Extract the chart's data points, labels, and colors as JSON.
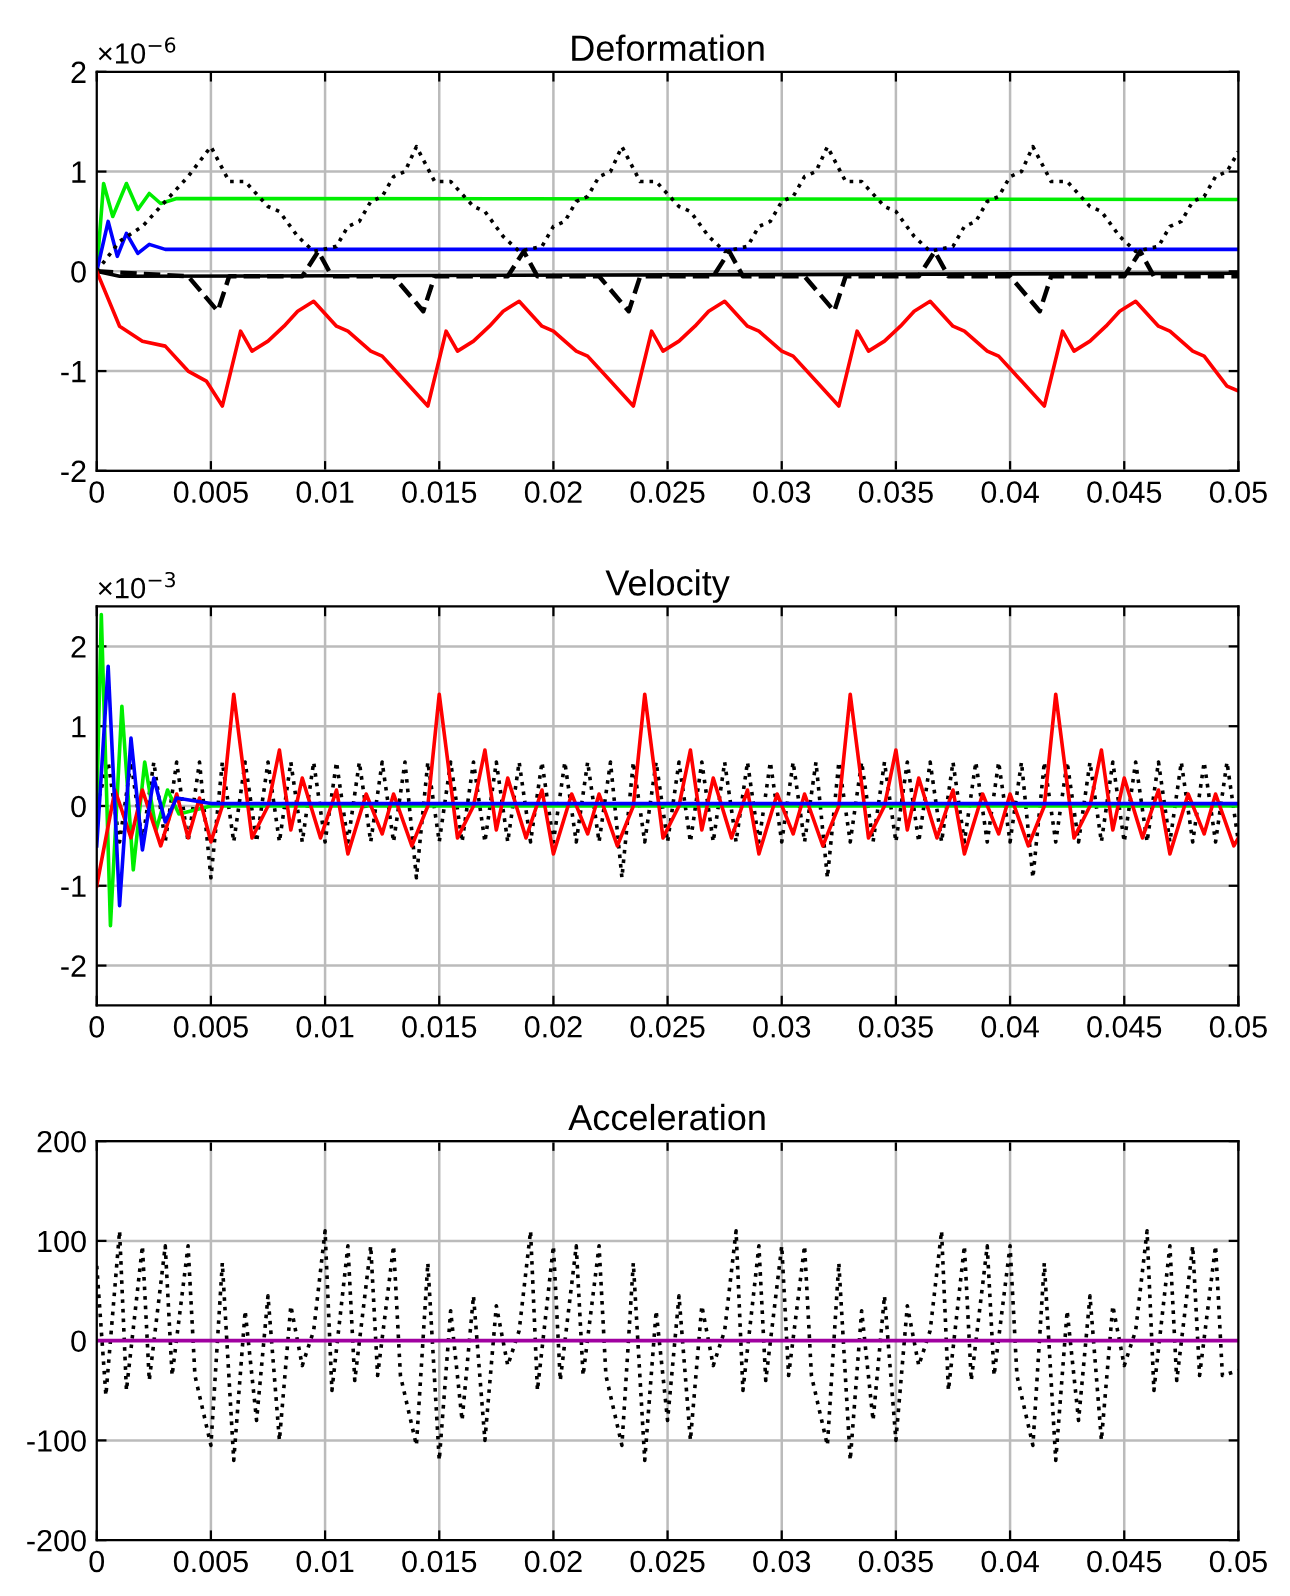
{
  "chart_data": [
    {
      "type": "line",
      "title": "Deformation",
      "annotations": [
        "×10$^{−6}$"
      ],
      "xlim": [
        0,
        0.05
      ],
      "xticks": [
        0,
        0.005,
        0.01,
        0.015,
        0.02,
        0.025,
        0.03,
        0.035,
        0.04,
        0.045,
        0.05
      ],
      "ylim": [
        -2,
        2
      ],
      "yticks": [
        -2,
        -1,
        0,
        1,
        2
      ],
      "grid": true,
      "series": [
        {
          "color": "#00ee00",
          "line_style": "solid",
          "x": [
            0,
            0.0003,
            0.0007,
            0.0013,
            0.0018,
            0.0023,
            0.0028,
            0.0035,
            0.05
          ],
          "values": [
            0,
            0.88,
            0.55,
            0.88,
            0.62,
            0.78,
            0.68,
            0.73,
            0.72
          ]
        },
        {
          "color": "#0000ff",
          "line_style": "solid",
          "x": [
            0,
            0.0005,
            0.0009,
            0.0013,
            0.0018,
            0.0023,
            0.003,
            0.05
          ],
          "values": [
            0,
            0.5,
            0.15,
            0.38,
            0.18,
            0.27,
            0.22,
            0.22
          ]
        },
        {
          "color": "#000000",
          "line_style": "solid",
          "x": [
            0,
            0.001,
            0.05
          ],
          "values": [
            0,
            -0.05,
            -0.02
          ]
        },
        {
          "color": "#000000",
          "line_style": "dashed",
          "x": [
            0,
            0.004,
            0.0053,
            0.0058,
            0.009,
            0.0097,
            0.0103,
            0.013,
            0.0143,
            0.0148,
            0.018,
            0.0187,
            0.0193,
            0.022,
            0.0233,
            0.0238,
            0.027,
            0.0277,
            0.0283,
            0.031,
            0.0323,
            0.0328,
            0.036,
            0.0367,
            0.0373,
            0.04,
            0.0413,
            0.0418,
            0.045,
            0.0457,
            0.0463,
            0.05
          ],
          "values": [
            0,
            -0.05,
            -0.4,
            -0.05,
            -0.05,
            0.2,
            -0.05,
            -0.05,
            -0.4,
            -0.05,
            -0.05,
            0.2,
            -0.05,
            -0.05,
            -0.4,
            -0.05,
            -0.05,
            0.2,
            -0.05,
            -0.05,
            -0.4,
            -0.05,
            -0.05,
            0.2,
            -0.05,
            -0.05,
            -0.4,
            -0.05,
            -0.05,
            0.2,
            -0.05,
            -0.05
          ]
        },
        {
          "color": "#000000",
          "line_style": "dotted",
          "x": [
            0,
            0.001,
            0.002,
            0.003,
            0.004,
            0.005,
            0.0058,
            0.0065,
            0.0075,
            0.008,
            0.0088,
            0.0095,
            0.0105,
            0.011,
            0.0115,
            0.012,
            0.0125,
            0.013,
            0.0135,
            0.014,
            0.0148,
            0.0155,
            0.0165,
            0.017,
            0.0178,
            0.0185,
            0.0195,
            0.02,
            0.0205,
            0.021,
            0.0215,
            0.022,
            0.0225,
            0.023,
            0.0238,
            0.0245,
            0.0255,
            0.026,
            0.0268,
            0.0275,
            0.0285,
            0.029,
            0.0295,
            0.03,
            0.0305,
            0.031,
            0.0315,
            0.032,
            0.0328,
            0.0335,
            0.0345,
            0.035,
            0.0358,
            0.0365,
            0.0375,
            0.038,
            0.0385,
            0.039,
            0.0395,
            0.04,
            0.0405,
            0.041,
            0.0418,
            0.0425,
            0.0435,
            0.044,
            0.0448,
            0.0455,
            0.0465,
            0.047,
            0.0475,
            0.048,
            0.0485,
            0.049,
            0.0495,
            0.05
          ],
          "values": [
            0,
            0.3,
            0.45,
            0.7,
            0.95,
            1.25,
            0.9,
            0.9,
            0.65,
            0.6,
            0.35,
            0.2,
            0.25,
            0.45,
            0.5,
            0.7,
            0.75,
            0.95,
            1.0,
            1.25,
            0.9,
            0.9,
            0.65,
            0.6,
            0.35,
            0.2,
            0.25,
            0.45,
            0.5,
            0.7,
            0.75,
            0.95,
            1.0,
            1.25,
            0.9,
            0.9,
            0.65,
            0.6,
            0.35,
            0.2,
            0.25,
            0.45,
            0.5,
            0.7,
            0.75,
            0.95,
            1.0,
            1.25,
            0.9,
            0.9,
            0.65,
            0.6,
            0.35,
            0.2,
            0.25,
            0.45,
            0.5,
            0.7,
            0.75,
            0.95,
            1.0,
            1.25,
            0.9,
            0.9,
            0.65,
            0.6,
            0.35,
            0.2,
            0.25,
            0.45,
            0.5,
            0.7,
            0.75,
            0.95,
            1.0,
            1.2
          ]
        },
        {
          "color": "#ff0000",
          "line_style": "solid",
          "x": [
            0,
            0.001,
            0.002,
            0.003,
            0.004,
            0.0048,
            0.0055,
            0.0063,
            0.0068,
            0.0075,
            0.0082,
            0.0088,
            0.0095,
            0.0105,
            0.011,
            0.012,
            0.0125,
            0.0135,
            0.0145,
            0.0153,
            0.0158,
            0.0165,
            0.0172,
            0.0178,
            0.0185,
            0.0195,
            0.02,
            0.021,
            0.0215,
            0.0225,
            0.0235,
            0.0243,
            0.0248,
            0.0255,
            0.0262,
            0.0268,
            0.0275,
            0.0285,
            0.029,
            0.03,
            0.0305,
            0.0315,
            0.0325,
            0.0333,
            0.0338,
            0.0345,
            0.0352,
            0.0358,
            0.0365,
            0.0375,
            0.038,
            0.039,
            0.0395,
            0.0405,
            0.0415,
            0.0423,
            0.0428,
            0.0435,
            0.0442,
            0.0448,
            0.0455,
            0.0465,
            0.047,
            0.048,
            0.0485,
            0.0495,
            0.05
          ],
          "values": [
            0,
            -0.55,
            -0.7,
            -0.75,
            -1.0,
            -1.1,
            -1.35,
            -0.6,
            -0.8,
            -0.7,
            -0.55,
            -0.4,
            -0.3,
            -0.55,
            -0.6,
            -0.8,
            -0.85,
            -1.1,
            -1.35,
            -0.6,
            -0.8,
            -0.7,
            -0.55,
            -0.4,
            -0.3,
            -0.55,
            -0.6,
            -0.8,
            -0.85,
            -1.1,
            -1.35,
            -0.6,
            -0.8,
            -0.7,
            -0.55,
            -0.4,
            -0.3,
            -0.55,
            -0.6,
            -0.8,
            -0.85,
            -1.1,
            -1.35,
            -0.6,
            -0.8,
            -0.7,
            -0.55,
            -0.4,
            -0.3,
            -0.55,
            -0.6,
            -0.8,
            -0.85,
            -1.1,
            -1.35,
            -0.6,
            -0.8,
            -0.7,
            -0.55,
            -0.4,
            -0.3,
            -0.55,
            -0.6,
            -0.8,
            -0.85,
            -1.15,
            -1.2
          ]
        }
      ]
    },
    {
      "type": "line",
      "title": "Velocity",
      "annotations": [
        "×10$^{−3}$"
      ],
      "xlim": [
        0,
        0.05
      ],
      "xticks": [
        0,
        0.005,
        0.01,
        0.015,
        0.02,
        0.025,
        0.03,
        0.035,
        0.04,
        0.045,
        0.05
      ],
      "ylim": [
        -2.5,
        2.5
      ],
      "yticks": [
        -2,
        -1,
        0,
        1,
        2
      ],
      "grid": true,
      "series": [
        {
          "color": "#000000",
          "line_style": "dotted",
          "x": [
            0,
            0.0005,
            0.001,
            0.0015,
            0.002,
            0.0025,
            0.003,
            0.0035,
            0.004,
            0.0045,
            0.005,
            0.0055,
            0.006,
            0.0065,
            0.007,
            0.0075,
            0.008,
            0.0085,
            0.009,
            0.0095,
            0.01,
            0.0105,
            0.011,
            0.0115,
            0.012,
            0.0125,
            0.013,
            0.0135,
            0.014,
            0.0145,
            0.015,
            0.0155,
            0.016,
            0.0165,
            0.017,
            0.0175,
            0.018,
            0.0185,
            0.019,
            0.0195,
            0.02,
            0.0205,
            0.021,
            0.0215,
            0.022,
            0.0225,
            0.023,
            0.0235,
            0.024,
            0.0245,
            0.025,
            0.0255,
            0.026,
            0.0265,
            0.027,
            0.0275,
            0.028,
            0.0285,
            0.029,
            0.0295,
            0.03,
            0.0305,
            0.031,
            0.0315,
            0.032,
            0.0325,
            0.033,
            0.0335,
            0.034,
            0.0345,
            0.035,
            0.0355,
            0.036,
            0.0365,
            0.037,
            0.0375,
            0.038,
            0.0385,
            0.039,
            0.0395,
            0.04,
            0.0405,
            0.041,
            0.0415,
            0.042,
            0.0425,
            0.043,
            0.0435,
            0.044,
            0.0445,
            0.045,
            0.0455,
            0.046,
            0.0465,
            0.047,
            0.0475,
            0.048,
            0.0485,
            0.049,
            0.0495,
            0.05
          ],
          "values": [
            0,
            0.55,
            -0.45,
            0.55,
            -0.45,
            0.55,
            -0.45,
            0.55,
            -0.45,
            0.55,
            -0.9,
            0.55,
            -0.45,
            0.55,
            -0.45,
            0.55,
            -0.45,
            0.55,
            -0.45,
            0.55,
            -0.45,
            0.55,
            -0.45,
            0.55,
            -0.45,
            0.55,
            -0.45,
            0.55,
            -0.9,
            0.55,
            -0.45,
            0.55,
            -0.45,
            0.55,
            -0.45,
            0.55,
            -0.45,
            0.55,
            -0.45,
            0.55,
            -0.45,
            0.55,
            -0.45,
            0.55,
            -0.45,
            0.55,
            -0.9,
            0.55,
            -0.45,
            0.55,
            -0.45,
            0.55,
            -0.45,
            0.55,
            -0.45,
            0.55,
            -0.45,
            0.55,
            -0.45,
            0.55,
            -0.45,
            0.55,
            -0.45,
            0.55,
            -0.9,
            0.55,
            -0.45,
            0.55,
            -0.45,
            0.55,
            -0.45,
            0.55,
            -0.45,
            0.55,
            -0.45,
            0.55,
            -0.45,
            0.55,
            -0.45,
            0.55,
            -0.45,
            0.55,
            -0.9,
            0.55,
            -0.45,
            0.55,
            -0.45,
            0.55,
            -0.45,
            0.55,
            -0.45,
            0.55,
            -0.45,
            0.55,
            -0.45,
            0.55,
            -0.45,
            0.55,
            -0.45,
            0.55,
            -0.45
          ]
        },
        {
          "color": "#00ee00",
          "line_style": "solid",
          "x": [
            0,
            0.0002,
            0.0006,
            0.0011,
            0.0016,
            0.0021,
            0.0026,
            0.0031,
            0.0036,
            0.005,
            0.05
          ],
          "values": [
            0,
            2.4,
            -1.5,
            1.25,
            -0.8,
            0.55,
            -0.3,
            0.2,
            -0.1,
            0,
            0
          ]
        },
        {
          "color": "#ff0000",
          "line_style": "solid",
          "x": [
            0,
            0.0008,
            0.0015,
            0.002,
            0.0028,
            0.0035,
            0.004,
            0.0045,
            0.005,
            0.0055,
            0.006,
            0.0068,
            0.0075,
            0.008,
            0.0085,
            0.009,
            0.0098,
            0.0105,
            0.011,
            0.0118,
            0.0125,
            0.013,
            0.0138,
            0.0145,
            0.015,
            0.0158,
            0.0165,
            0.017,
            0.0175,
            0.018,
            0.0188,
            0.0195,
            0.02,
            0.0208,
            0.0215,
            0.022,
            0.0228,
            0.0235,
            0.024,
            0.0248,
            0.0255,
            0.026,
            0.0265,
            0.027,
            0.0278,
            0.0285,
            0.029,
            0.0298,
            0.0305,
            0.031,
            0.0318,
            0.0325,
            0.033,
            0.0338,
            0.0345,
            0.035,
            0.0355,
            0.036,
            0.0368,
            0.0375,
            0.038,
            0.0388,
            0.0395,
            0.04,
            0.0408,
            0.0415,
            0.042,
            0.0428,
            0.0435,
            0.044,
            0.0445,
            0.045,
            0.0458,
            0.0465,
            0.047,
            0.0478,
            0.0485,
            0.049,
            0.0498,
            0.05
          ],
          "values": [
            -1.0,
            0.2,
            -0.4,
            0.2,
            -0.5,
            0.15,
            -0.4,
            0.1,
            -0.45,
            0,
            1.4,
            -0.4,
            0,
            0.7,
            -0.3,
            0.35,
            -0.4,
            0.2,
            -0.6,
            0.15,
            -0.35,
            0.15,
            -0.5,
            0,
            1.4,
            -0.4,
            0,
            0.7,
            -0.3,
            0.35,
            -0.4,
            0.2,
            -0.6,
            0.15,
            -0.35,
            0.15,
            -0.5,
            0,
            1.4,
            -0.4,
            0,
            0.7,
            -0.3,
            0.35,
            -0.4,
            0.2,
            -0.6,
            0.15,
            -0.35,
            0.15,
            -0.5,
            0,
            1.4,
            -0.4,
            0,
            0.7,
            -0.3,
            0.35,
            -0.4,
            0.2,
            -0.6,
            0.15,
            -0.35,
            0.15,
            -0.5,
            0,
            1.4,
            -0.4,
            0,
            0.7,
            -0.3,
            0.35,
            -0.4,
            0.2,
            -0.6,
            0.15,
            -0.35,
            0.15,
            -0.5,
            -0.4
          ]
        },
        {
          "color": "#0000ff",
          "line_style": "solid",
          "x": [
            0,
            0.0005,
            0.001,
            0.0015,
            0.002,
            0.0025,
            0.003,
            0.0035,
            0.005,
            0.05
          ],
          "values": [
            -0.5,
            1.75,
            -1.25,
            0.85,
            -0.55,
            0.35,
            -0.2,
            0.1,
            0.03,
            0.03
          ]
        }
      ]
    },
    {
      "type": "line",
      "title": "Acceleration",
      "xlim": [
        0,
        0.05
      ],
      "xticks": [
        0,
        0.005,
        0.01,
        0.015,
        0.02,
        0.025,
        0.03,
        0.035,
        0.04,
        0.045,
        0.05
      ],
      "ylim": [
        -200,
        200
      ],
      "yticks": [
        -200,
        -100,
        0,
        100,
        200
      ],
      "grid": true,
      "series": [
        {
          "color": "#000000",
          "line_style": "dotted",
          "x": [
            0,
            0.0004,
            0.001,
            0.0013,
            0.002,
            0.0023,
            0.003,
            0.0033,
            0.004,
            0.0043,
            0.005,
            0.0055,
            0.006,
            0.0065,
            0.007,
            0.0075,
            0.008,
            0.0085,
            0.009,
            0.0095,
            0.01,
            0.0103,
            0.011,
            0.0113,
            0.012,
            0.0123,
            0.013,
            0.0133,
            0.014,
            0.0145,
            0.015,
            0.0155,
            0.016,
            0.0165,
            0.017,
            0.0175,
            0.018,
            0.0185,
            0.019,
            0.0193,
            0.02,
            0.0203,
            0.021,
            0.0213,
            0.022,
            0.0223,
            0.023,
            0.0235,
            0.024,
            0.0245,
            0.025,
            0.0255,
            0.026,
            0.0265,
            0.027,
            0.0275,
            0.028,
            0.0283,
            0.029,
            0.0293,
            0.03,
            0.0303,
            0.031,
            0.0313,
            0.032,
            0.0325,
            0.033,
            0.0335,
            0.034,
            0.0345,
            0.035,
            0.0355,
            0.036,
            0.0365,
            0.037,
            0.0373,
            0.038,
            0.0383,
            0.039,
            0.0393,
            0.04,
            0.0403,
            0.041,
            0.0415,
            0.042,
            0.0425,
            0.043,
            0.0435,
            0.044,
            0.0445,
            0.045,
            0.0455,
            0.046,
            0.0463,
            0.047,
            0.0473,
            0.048,
            0.0483,
            0.049,
            0.0493,
            0.05
          ],
          "values": [
            75,
            -55,
            110,
            -50,
            95,
            -40,
            95,
            -35,
            95,
            -35,
            -105,
            78,
            -120,
            30,
            -80,
            45,
            -100,
            35,
            -25,
            10,
            110,
            -50,
            95,
            -40,
            95,
            -35,
            95,
            -35,
            -105,
            78,
            -120,
            30,
            -80,
            45,
            -100,
            35,
            -25,
            10,
            110,
            -50,
            95,
            -40,
            95,
            -35,
            95,
            -35,
            -105,
            78,
            -120,
            30,
            -80,
            45,
            -100,
            35,
            -25,
            10,
            110,
            -50,
            95,
            -40,
            95,
            -35,
            95,
            -35,
            -105,
            78,
            -120,
            30,
            -80,
            45,
            -100,
            35,
            -25,
            10,
            110,
            -50,
            95,
            -40,
            95,
            -35,
            95,
            -35,
            -105,
            78,
            -120,
            30,
            -80,
            45,
            -100,
            35,
            -25,
            10,
            110,
            -50,
            95,
            -40,
            95,
            -35,
            95,
            -35,
            -30
          ]
        },
        {
          "color": "#a000a0",
          "line_style": "solid",
          "x": [
            0,
            0.05
          ],
          "values": [
            0,
            0
          ]
        }
      ]
    }
  ]
}
